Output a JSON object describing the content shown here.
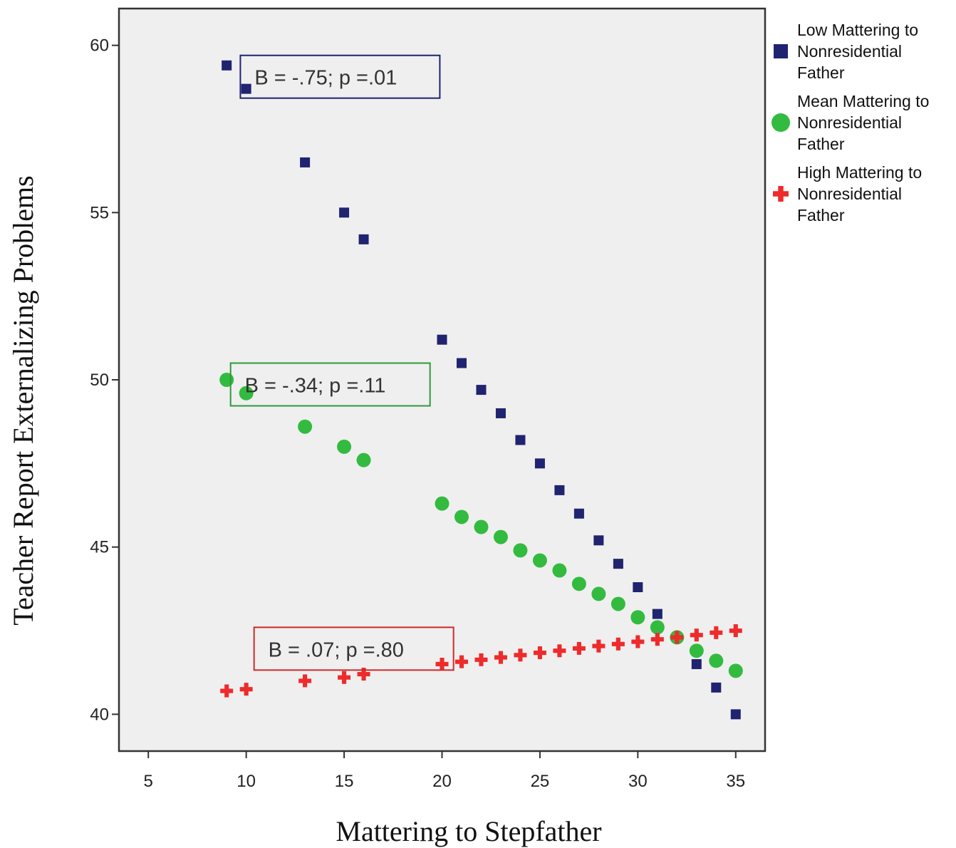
{
  "chart_data": {
    "type": "scatter",
    "xlabel": "Mattering to Stepfather",
    "ylabel": "Teacher Report Externalizing Problems",
    "xlim": [
      3.5,
      36.5
    ],
    "ylim": [
      38.9,
      61.1
    ],
    "xticks": [
      5,
      10,
      15,
      20,
      25,
      30,
      35
    ],
    "yticks": [
      40,
      45,
      50,
      55,
      60
    ],
    "grid": false,
    "legend_position": "right",
    "plot_background": "#efefef",
    "series": [
      {
        "name": [
          "Low Mattering to",
          "Nonresidential",
          "Father"
        ],
        "marker": "square",
        "color": "#1f2370",
        "x": [
          9,
          10,
          13,
          15,
          16,
          20,
          21,
          22,
          23,
          24,
          25,
          26,
          27,
          28,
          29,
          30,
          31,
          32,
          33,
          34,
          35
        ],
        "y": [
          59.4,
          58.7,
          56.5,
          55.0,
          54.2,
          51.2,
          50.5,
          49.7,
          49.0,
          48.2,
          47.5,
          46.7,
          46.0,
          45.2,
          44.5,
          43.8,
          43.0,
          42.3,
          41.5,
          40.8,
          40.0
        ]
      },
      {
        "name": [
          "Mean Mattering to",
          "Nonresidential",
          "Father"
        ],
        "marker": "circle",
        "color": "#33bb3f",
        "x": [
          9,
          10,
          13,
          15,
          16,
          20,
          21,
          22,
          23,
          24,
          25,
          26,
          27,
          28,
          29,
          30,
          31,
          32,
          33,
          34,
          35
        ],
        "y": [
          50.0,
          49.6,
          48.6,
          48.0,
          47.6,
          46.3,
          45.9,
          45.6,
          45.3,
          44.9,
          44.6,
          44.3,
          43.9,
          43.6,
          43.3,
          42.9,
          42.6,
          42.3,
          41.9,
          41.6,
          41.3
        ]
      },
      {
        "name": [
          "High Mattering to",
          "Nonresidential",
          "Father"
        ],
        "marker": "plus",
        "color": "#ee2b2b",
        "x": [
          9,
          10,
          13,
          15,
          16,
          20,
          21,
          22,
          23,
          24,
          25,
          26,
          27,
          28,
          29,
          30,
          31,
          32,
          33,
          34,
          35
        ],
        "y": [
          40.7,
          40.75,
          41.0,
          41.1,
          41.2,
          41.5,
          41.57,
          41.63,
          41.7,
          41.77,
          41.84,
          41.9,
          41.97,
          42.04,
          42.1,
          42.17,
          42.24,
          42.3,
          42.37,
          42.44,
          42.5
        ]
      }
    ],
    "annotations": [
      {
        "text": "B = -.75; p =.01",
        "x": 9.7,
        "y": 59.7,
        "border_color": "#1f2370"
      },
      {
        "text": "B = -.34; p =.11",
        "x": 9.2,
        "y": 50.5,
        "border_color": "#2e9a3a"
      },
      {
        "text": "B = .07; p =.80",
        "x": 10.4,
        "y": 42.6,
        "border_color": "#cc2a2a"
      }
    ]
  }
}
